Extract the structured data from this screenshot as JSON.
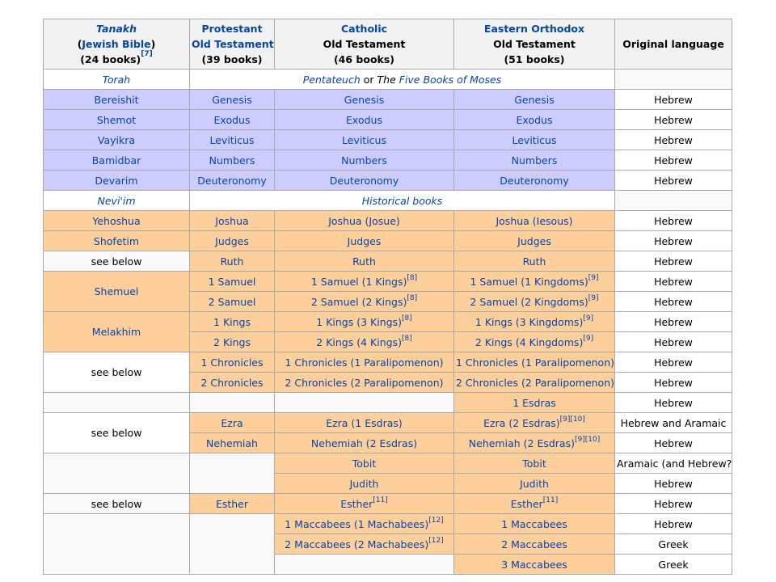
{
  "headers": {
    "tanakh": {
      "title": "Tanakh",
      "open": "(",
      "sub": "Jewish Bible",
      "close": ")",
      "count": "(24 books)",
      "ref": "[7]"
    },
    "protestant": {
      "title": "Protestant",
      "sub": "Old Testament",
      "count": "(39 books)"
    },
    "catholic": {
      "title": "Catholic",
      "sub": "Old Testament",
      "count": "(46 books)"
    },
    "orthodox": {
      "title": "Eastern Orthodox",
      "sub": "Old Testament",
      "count": "(51 books)"
    },
    "language": {
      "title": "Original language"
    }
  },
  "sections": {
    "torah": {
      "tanakh": "Torah",
      "link1": "Pentateuch",
      "mid": " or ",
      "pre2": "The ",
      "link2": "Five Books of Moses"
    },
    "neviim": {
      "tanakh": "Nevi'im",
      "label": "Historical books"
    }
  },
  "refs": {
    "r8": "[8]",
    "r9": "[9]",
    "r10": "[10]",
    "r11": "[11]",
    "r12": "[12]"
  },
  "torah_rows": [
    {
      "t": "Bereishit",
      "p": "Genesis",
      "c": "Genesis",
      "o": "Genesis",
      "l": "Hebrew"
    },
    {
      "t": "Shemot",
      "p": "Exodus",
      "c": "Exodus",
      "o": "Exodus",
      "l": "Hebrew"
    },
    {
      "t": "Vayikra",
      "p": "Leviticus",
      "c": "Leviticus",
      "o": "Leviticus",
      "l": "Hebrew"
    },
    {
      "t": "Bamidbar",
      "p": "Numbers",
      "c": "Numbers",
      "o": "Numbers",
      "l": "Hebrew"
    },
    {
      "t": "Devarim",
      "p": "Deuteronomy",
      "c": "Deuteronomy",
      "o": "Deuteronomy",
      "l": "Hebrew"
    }
  ],
  "hist": {
    "yehoshua": {
      "t": "Yehoshua",
      "p": "Joshua",
      "c": "Joshua (Josue)",
      "o": "Joshua (Iesous)",
      "l": "Hebrew"
    },
    "shofetim": {
      "t": "Shofetim",
      "p": "Judges",
      "c": "Judges",
      "o": "Judges",
      "l": "Hebrew"
    },
    "ruth": {
      "t": "see below",
      "p": "Ruth",
      "c": "Ruth",
      "o": "Ruth",
      "l": "Hebrew"
    },
    "shemuel": {
      "t": "Shemuel",
      "r1": {
        "p": "1 Samuel",
        "c": "1 Samuel (1 Kings)",
        "o": "1 Samuel (1 Kingdoms)",
        "l": "Hebrew"
      },
      "r2": {
        "p": "2 Samuel",
        "c": "2 Samuel (2 Kings)",
        "o": "2 Samuel (2 Kingdoms)",
        "l": "Hebrew"
      }
    },
    "melakhim": {
      "t": "Melakhim",
      "r1": {
        "p": "1 Kings",
        "c": "1 Kings (3 Kings)",
        "o": "1 Kings (3 Kingdoms)",
        "l": "Hebrew"
      },
      "r2": {
        "p": "2 Kings",
        "c": "2 Kings (4 Kings)",
        "o": "2 Kings (4 Kingdoms)",
        "l": "Hebrew"
      }
    },
    "chronicles": {
      "t": "see below",
      "r1": {
        "p": "1 Chronicles",
        "c": "1 Chronicles (1 Paralipomenon)",
        "o": "1 Chronicles (1 Paralipomenon)",
        "l": "Hebrew"
      },
      "r2": {
        "p": "2 Chronicles",
        "c": "2 Chronicles (2 Paralipomenon)",
        "o": "2 Chronicles (2 Paralipomenon)",
        "l": "Hebrew"
      }
    },
    "esdras1": {
      "o": "1 Esdras",
      "l": "Hebrew"
    },
    "ezra": {
      "t": "see below",
      "r1": {
        "p": "Ezra",
        "c": "Ezra (1 Esdras)",
        "o": "Ezra (2 Esdras)",
        "l": "Hebrew and Aramaic"
      },
      "r2": {
        "p": "Nehemiah",
        "c": "Nehemiah (2 Esdras)",
        "o": "Nehemiah (2 Esdras)",
        "l": "Hebrew"
      }
    },
    "tobit": {
      "c": "Tobit",
      "o": "Tobit",
      "l": "Aramaic (and Hebrew?)"
    },
    "judith": {
      "c": "Judith",
      "o": "Judith",
      "l": "Hebrew"
    },
    "esther": {
      "t": "see below",
      "p": "Esther",
      "c": "Esther",
      "o": "Esther",
      "l": "Hebrew"
    },
    "macc1": {
      "c": "1 Maccabees (1 Machabees)",
      "o": "1 Maccabees",
      "l": "Hebrew"
    },
    "macc2": {
      "c": "2 Maccabees (2 Machabees)",
      "o": "2 Maccabees",
      "l": "Greek"
    },
    "macc3": {
      "o": "3 Maccabees",
      "l": "Greek"
    }
  },
  "colors": {
    "header": "#f2f2f2",
    "torah": "#ccccff",
    "historical": "#fdcf9a",
    "link": "#0645ad",
    "border": "#aaaaaa"
  }
}
